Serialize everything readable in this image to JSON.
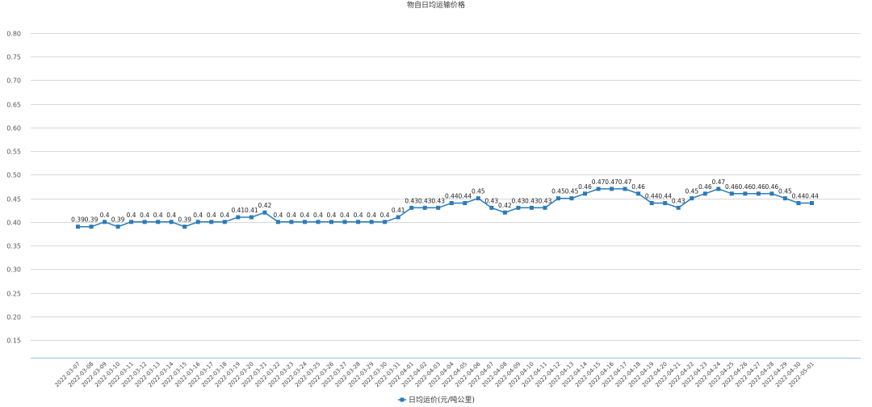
{
  "chart_data": {
    "type": "line",
    "title": "物自日均运输价格",
    "xlabel": "",
    "ylabel": "",
    "ylim": [
      0.1,
      0.8
    ],
    "yticks": [
      "0.80",
      "0.75",
      "0.70",
      "0.65",
      "0.60",
      "0.55",
      "0.50",
      "0.45",
      "0.40",
      "0.35",
      "0.30",
      "0.25",
      "0.20",
      "0.15"
    ],
    "ytick_values": [
      0.8,
      0.75,
      0.7,
      0.65,
      0.6,
      0.55,
      0.5,
      0.45,
      0.4,
      0.35,
      0.3,
      0.25,
      0.2,
      0.15
    ],
    "grid": true,
    "legend_position": "bottom",
    "color": "#2b7bb9",
    "categories": [
      "2022-03-07",
      "2022-03-08",
      "2022-03-09",
      "2022-03-10",
      "2022-03-11",
      "2022-03-12",
      "2022-03-13",
      "2022-03-14",
      "2022-03-15",
      "2022-03-16",
      "2022-03-17",
      "2022-03-18",
      "2022-03-19",
      "2022-03-20",
      "2022-03-21",
      "2022-03-22",
      "2022-03-23",
      "2022-03-24",
      "2022-03-25",
      "2022-03-26",
      "2022-03-27",
      "2022-03-28",
      "2022-03-29",
      "2022-03-30",
      "2022-03-31",
      "2022-04-01",
      "2022-04-02",
      "2022-04-03",
      "2022-04-04",
      "2022-04-05",
      "2022-04-06",
      "2022-04-07",
      "2022-04-08",
      "2022-04-09",
      "2022-04-10",
      "2022-04-11",
      "2022-04-12",
      "2022-04-13",
      "2022-04-14",
      "2022-04-15",
      "2022-04-16",
      "2022-04-17",
      "2022-04-18",
      "2022-04-19",
      "2022-04-20",
      "2022-04-21",
      "2022-04-22",
      "2022-04-23",
      "2022-04-24",
      "2022-04-25",
      "2022-04-26",
      "2022-04-27",
      "2022-04-28",
      "2022-04-29",
      "2022-04-30",
      "2022-05-01"
    ],
    "series": [
      {
        "name": "日均运价(元/吨公里)",
        "values": [
          0.39,
          0.39,
          0.4,
          0.39,
          0.4,
          0.4,
          0.4,
          0.4,
          0.39,
          0.4,
          0.4,
          0.4,
          0.41,
          0.41,
          0.42,
          0.4,
          0.4,
          0.4,
          0.4,
          0.4,
          0.4,
          0.4,
          0.4,
          0.4,
          0.41,
          0.43,
          0.43,
          0.43,
          0.44,
          0.44,
          0.45,
          0.43,
          0.42,
          0.43,
          0.43,
          0.43,
          0.45,
          0.45,
          0.46,
          0.47,
          0.47,
          0.47,
          0.46,
          0.44,
          0.44,
          0.43,
          0.45,
          0.46,
          0.47,
          0.46,
          0.46,
          0.46,
          0.46,
          0.45,
          0.44,
          0.44
        ],
        "labels": [
          "0.39",
          "0.39",
          "0.4",
          "0.39",
          "0.4",
          "0.4",
          "0.4",
          "0.4",
          "0.39",
          "0.4",
          "0.4",
          "0.4",
          "0.41",
          "0.41",
          "0.42",
          "0.4",
          "0.4",
          "0.4",
          "0.4",
          "0.4",
          "0.4",
          "0.4",
          "0.4",
          "0.4",
          "0.41",
          "0.43",
          "0.43",
          "0.43",
          "0.44",
          "0.44",
          "0.45",
          "0.43",
          "0.42",
          "0.43",
          "0.43",
          "0.43",
          "0.45",
          "0.45",
          "0.46",
          "0.47",
          "0.47",
          "0.47",
          "0.46",
          "0.44",
          "0.44",
          "0.43",
          "0.45",
          "0.46",
          "0.47",
          "0.46",
          "0.46",
          "0.46",
          "0.46",
          "0.45",
          "0.44",
          "0.44"
        ]
      }
    ]
  }
}
